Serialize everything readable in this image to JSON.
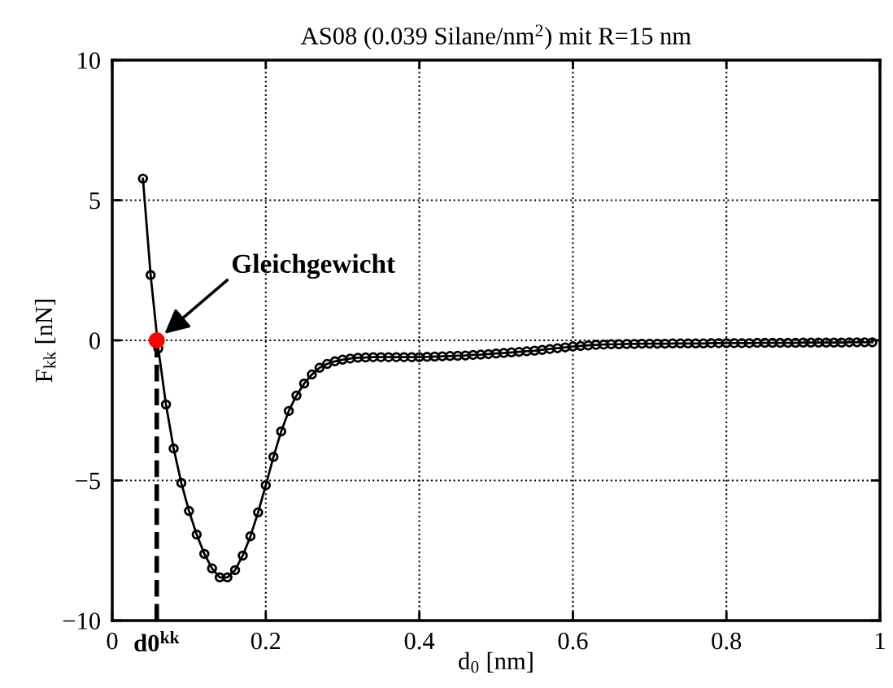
{
  "chart_data": {
    "type": "line",
    "title": "AS08 (0.039 Silane/nm$^{2}$) mit R=15 nm",
    "xlabel": "d$_{0}$ [nm]",
    "ylabel": "F$_{kk}$ [nN]",
    "xlim": [
      0,
      1
    ],
    "xticks": [
      0,
      0.2,
      0.4,
      0.6,
      0.8,
      1
    ],
    "ylim": [
      -10,
      10
    ],
    "yticks": [
      {
        "value": -10,
        "label": "−10"
      },
      {
        "value": -5,
        "label": "−5"
      },
      0,
      5,
      10
    ],
    "grid": true,
    "series": [
      {
        "type": "line",
        "color": "#000000",
        "marker": "circle",
        "line_style": "solid",
        "x": [
          0.04,
          0.05,
          0.06,
          0.07,
          0.08,
          0.09,
          0.1,
          0.11,
          0.12,
          0.13,
          0.14,
          0.15,
          0.16,
          0.17,
          0.18,
          0.19,
          0.2,
          0.21,
          0.22,
          0.23,
          0.24,
          0.25,
          0.26,
          0.27,
          0.28,
          0.29,
          0.3,
          0.31,
          0.32,
          0.33,
          0.34,
          0.35,
          0.36,
          0.37,
          0.38,
          0.39,
          0.4,
          0.41,
          0.42,
          0.43,
          0.44,
          0.45,
          0.46,
          0.47,
          0.48,
          0.49,
          0.5,
          0.51,
          0.52,
          0.53,
          0.54,
          0.55,
          0.56,
          0.57,
          0.58,
          0.59,
          0.6,
          0.61,
          0.62,
          0.63,
          0.64,
          0.65,
          0.66,
          0.67,
          0.68,
          0.69,
          0.7,
          0.71,
          0.72,
          0.73,
          0.74,
          0.75,
          0.76,
          0.77,
          0.78,
          0.79,
          0.8,
          0.81,
          0.82,
          0.83,
          0.84,
          0.85,
          0.86,
          0.87,
          0.88,
          0.89,
          0.9,
          0.91,
          0.92,
          0.93,
          0.94,
          0.95,
          0.96,
          0.97,
          0.98,
          0.99
        ],
        "values": [
          5.77,
          2.33,
          -0.29,
          -2.29,
          -3.86,
          -5.09,
          -6.09,
          -6.93,
          -7.62,
          -8.14,
          -8.46,
          -8.46,
          -8.2,
          -7.68,
          -6.99,
          -6.14,
          -5.17,
          -4.16,
          -3.25,
          -2.52,
          -1.97,
          -1.54,
          -1.22,
          -0.98,
          -0.84,
          -0.75,
          -0.69,
          -0.65,
          -0.62,
          -0.61,
          -0.6,
          -0.6,
          -0.6,
          -0.6,
          -0.6,
          -0.6,
          -0.6,
          -0.59,
          -0.58,
          -0.57,
          -0.56,
          -0.55,
          -0.54,
          -0.52,
          -0.51,
          -0.49,
          -0.47,
          -0.45,
          -0.43,
          -0.41,
          -0.39,
          -0.37,
          -0.34,
          -0.31,
          -0.28,
          -0.25,
          -0.22,
          -0.2,
          -0.18,
          -0.16,
          -0.15,
          -0.14,
          -0.14,
          -0.13,
          -0.13,
          -0.12,
          -0.12,
          -0.12,
          -0.12,
          -0.11,
          -0.11,
          -0.11,
          -0.11,
          -0.11,
          -0.1,
          -0.1,
          -0.1,
          -0.1,
          -0.1,
          -0.1,
          -0.09,
          -0.09,
          -0.09,
          -0.09,
          -0.09,
          -0.09,
          -0.08,
          -0.08,
          -0.08,
          -0.08,
          -0.08,
          -0.08,
          -0.07,
          -0.07,
          -0.07,
          -0.07
        ]
      },
      {
        "type": "scatter",
        "color": "#ff0000",
        "marker": "circle",
        "x": [
          0.058
        ],
        "values": [
          0
        ]
      }
    ],
    "ref_lines": [
      {
        "axis": "x",
        "value": 0.058,
        "label": "d0$^{kk}$",
        "color": "#000000",
        "line_style": "dashed"
      }
    ],
    "annotations": [
      "Gleichgewicht"
    ]
  }
}
